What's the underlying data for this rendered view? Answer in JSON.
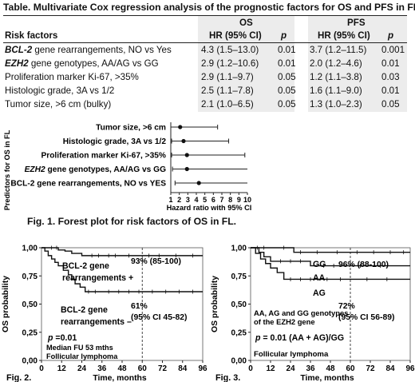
{
  "table": {
    "title": "Table. Multivariate Cox regression analysis of the prognostic factors for OS and PFS in FL",
    "group_headers": [
      "OS",
      "PFS"
    ],
    "columns": [
      "Risk factors",
      "HR (95% CI)",
      "p",
      "HR (95% CI)",
      "p"
    ],
    "rows": [
      {
        "factor_italic": "BCL-2",
        "factor_rest": " gene rearrangements, NO vs Yes",
        "os_hr": "4.3 (1.5–13.0)",
        "os_p": "0.01",
        "pfs_hr": "3.7 (1.2–11.5)",
        "pfs_p": "0.001"
      },
      {
        "factor_italic": "EZH2",
        "factor_rest": " gene genotypes, AA/AG vs GG",
        "os_hr": "2.9 (1.2–10.6)",
        "os_p": "0.01",
        "pfs_hr": "2.0 (1.2–4.6)",
        "pfs_p": "0.01"
      },
      {
        "factor_italic": "",
        "factor_rest": "Proliferation marker Ki-67, >35%",
        "os_hr": "2.9 (1.1–9.7)",
        "os_p": "0.05",
        "pfs_hr": "1.2 (1.1–3.8)",
        "pfs_p": "0.03"
      },
      {
        "factor_italic": "",
        "factor_rest": "Histologic grade, 3A vs 1/2",
        "os_hr": "2.5 (1.1–7.8)",
        "os_p": "0.05",
        "pfs_hr": "1.6 (1.1–9.0)",
        "pfs_p": "0.01"
      },
      {
        "factor_italic": "",
        "factor_rest": "Tumor size, >6 cm (bulky)",
        "os_hr": "2.1 (1.0–6.5)",
        "os_p": "0.05",
        "pfs_hr": "1.3 (1.0–2.3)",
        "pfs_p": "0.05"
      }
    ]
  },
  "chart_data": [
    {
      "type": "forest",
      "figure_label": "Fig. 1. Forest plot for risk factors of OS in FL.",
      "ylabel": "Predictors for OS in FL",
      "xlabel": "Hazard ratio with 95% CI",
      "xlim": [
        1,
        10
      ],
      "xticks": [
        "1",
        "2",
        "3",
        "4",
        "5",
        "6",
        "7",
        "8",
        "9",
        "10"
      ],
      "reference_line": 1,
      "items": [
        {
          "label": "Tumor size, >6 cm",
          "italic_prefix": "",
          "hr": 2.1,
          "lo": 1.0,
          "hi": 6.5
        },
        {
          "label": "Histologic grade, 3A vs 1/2",
          "italic_prefix": "",
          "hr": 2.5,
          "lo": 1.1,
          "hi": 7.8
        },
        {
          "label": "Proliferation marker Ki-67, >35%",
          "italic_prefix": "",
          "hr": 2.9,
          "lo": 1.1,
          "hi": 9.7
        },
        {
          "label": " gene genotypes, AA/AG vs GG",
          "italic_prefix": "EZH2",
          "hr": 2.9,
          "lo": 1.2,
          "hi": 10.6
        },
        {
          "label": "BCL-2 gene rearrangements, NO vs YES",
          "italic_prefix": "",
          "hr": 4.3,
          "lo": 1.5,
          "hi": 13.0
        }
      ]
    },
    {
      "type": "line",
      "subtype": "kaplan-meier",
      "figure_label": "Fig. 2.",
      "ylabel": "OS probability",
      "xlabel": "Time, months",
      "xlim": [
        0,
        96
      ],
      "ylim": [
        0,
        1
      ],
      "xticks": [
        "0",
        "12",
        "24",
        "36",
        "48",
        "60",
        "72",
        "84",
        "96"
      ],
      "yticks": [
        "0,00",
        "0,25",
        "0,50",
        "0,75",
        "1,00"
      ],
      "cutoff_x": 60,
      "series": [
        {
          "name": "BCL-2 gene rearrangements +",
          "annotation": "93% (85-100)",
          "x": [
            0,
            5,
            10,
            14,
            18,
            24,
            96
          ],
          "y": [
            1.0,
            1.0,
            0.98,
            0.97,
            0.95,
            0.93,
            0.93
          ]
        },
        {
          "name": "BCL-2 gene rearrangements –",
          "annotation_line1": "61%",
          "annotation_line2": "(95% CI 45-82)",
          "x": [
            0,
            2,
            4,
            6,
            8,
            10,
            13,
            16,
            18,
            20,
            23,
            26,
            96
          ],
          "y": [
            1.0,
            0.97,
            0.93,
            0.9,
            0.87,
            0.84,
            0.8,
            0.76,
            0.72,
            0.68,
            0.65,
            0.61,
            0.61
          ]
        }
      ],
      "notes": [
        "p =0.01",
        "Median FU 53 mths",
        "Follicular lymphoma"
      ]
    },
    {
      "type": "line",
      "subtype": "kaplan-meier",
      "figure_label": "Fig. 3.",
      "ylabel": "OS probability",
      "xlabel": "Time, months",
      "xlim": [
        0,
        96
      ],
      "ylim": [
        0,
        1
      ],
      "xticks": [
        "0",
        "12",
        "24",
        "36",
        "48",
        "60",
        "72",
        "84",
        "96"
      ],
      "yticks": [
        "0,00",
        "0,25",
        "0,50",
        "0,75",
        "1,00"
      ],
      "cutoff_x": 60,
      "series": [
        {
          "name": "GG",
          "annotation": "96% (88-100)",
          "x": [
            0,
            12,
            26,
            96
          ],
          "y": [
            1.0,
            1.0,
            0.96,
            0.96
          ]
        },
        {
          "name": "AA",
          "x": [
            0,
            5,
            8,
            12,
            36,
            96
          ],
          "y": [
            1.0,
            0.96,
            0.92,
            0.88,
            0.84,
            0.84
          ]
        },
        {
          "name": "AG",
          "annotation_line1": "72%",
          "annotation_line2": "(95% CI 56-89)",
          "x": [
            0,
            3,
            6,
            9,
            12,
            16,
            20,
            96
          ],
          "y": [
            1.0,
            0.95,
            0.9,
            0.86,
            0.82,
            0.78,
            0.72,
            0.72
          ]
        }
      ],
      "notes": [
        "AA, AG and GG genotypes",
        "of the EZH2 gene",
        "p = 0.01 (AA + AG)/GG",
        "Follicular lymphoma"
      ]
    }
  ]
}
